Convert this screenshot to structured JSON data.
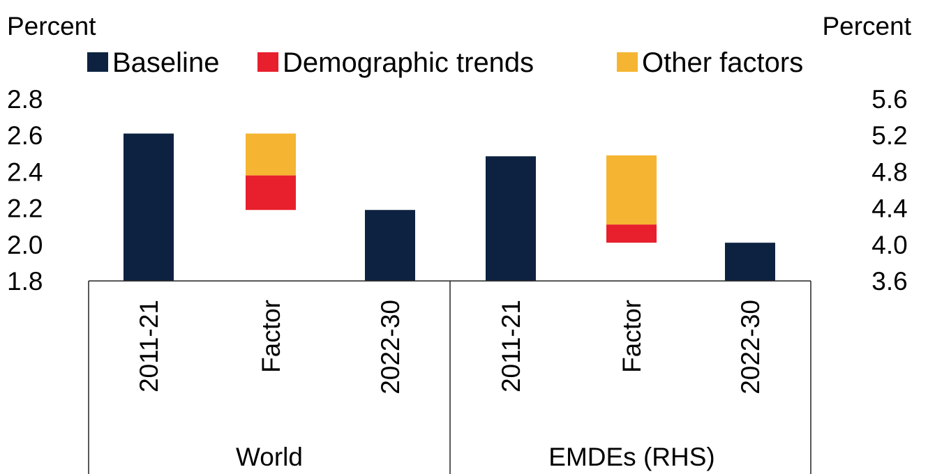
{
  "chart_data": {
    "type": "bar",
    "stacked": true,
    "left_axis": {
      "unit": "Percent",
      "ticks": [
        "2.8",
        "2.6",
        "2.4",
        "2.2",
        "2.0",
        "1.8"
      ],
      "ylim": [
        1.8,
        2.8
      ]
    },
    "right_axis": {
      "unit": "Percent",
      "ticks": [
        "5.6",
        "5.2",
        "4.8",
        "4.4",
        "4.0",
        "3.6"
      ],
      "ylim": [
        3.6,
        5.6
      ]
    },
    "legend": {
      "position": "top",
      "items": [
        {
          "label": "Baseline",
          "color": "#0d2240"
        },
        {
          "label": "Demographic trends",
          "color": "#e8202d"
        },
        {
          "label": "Other factors",
          "color": "#f5b532"
        }
      ]
    },
    "groups": [
      {
        "label": "World",
        "axis": "left",
        "categories": [
          "2011-21",
          "Factor",
          "2022-30"
        ],
        "bars": [
          {
            "category": "2011-21",
            "segments": [
              {
                "series": "Baseline",
                "from": 1.8,
                "to": 2.61
              }
            ]
          },
          {
            "category": "Factor",
            "segments": [
              {
                "series": "Demographic trends",
                "from": 2.19,
                "to": 2.38
              },
              {
                "series": "Other factors",
                "from": 2.38,
                "to": 2.61
              }
            ]
          },
          {
            "category": "2022-30",
            "segments": [
              {
                "series": "Baseline",
                "from": 1.8,
                "to": 2.19
              }
            ]
          }
        ]
      },
      {
        "label": "EMDEs (RHS)",
        "axis": "right",
        "categories": [
          "2011-21",
          "Factor",
          "2022-30"
        ],
        "bars": [
          {
            "category": "2011-21",
            "segments": [
              {
                "series": "Baseline",
                "from": 3.6,
                "to": 4.97
              }
            ]
          },
          {
            "category": "Factor",
            "segments": [
              {
                "series": "Demographic trends",
                "from": 4.02,
                "to": 4.22
              },
              {
                "series": "Other factors",
                "from": 4.22,
                "to": 4.98
              }
            ]
          },
          {
            "category": "2022-30",
            "segments": [
              {
                "series": "Baseline",
                "from": 3.6,
                "to": 4.02
              }
            ]
          }
        ]
      }
    ]
  }
}
